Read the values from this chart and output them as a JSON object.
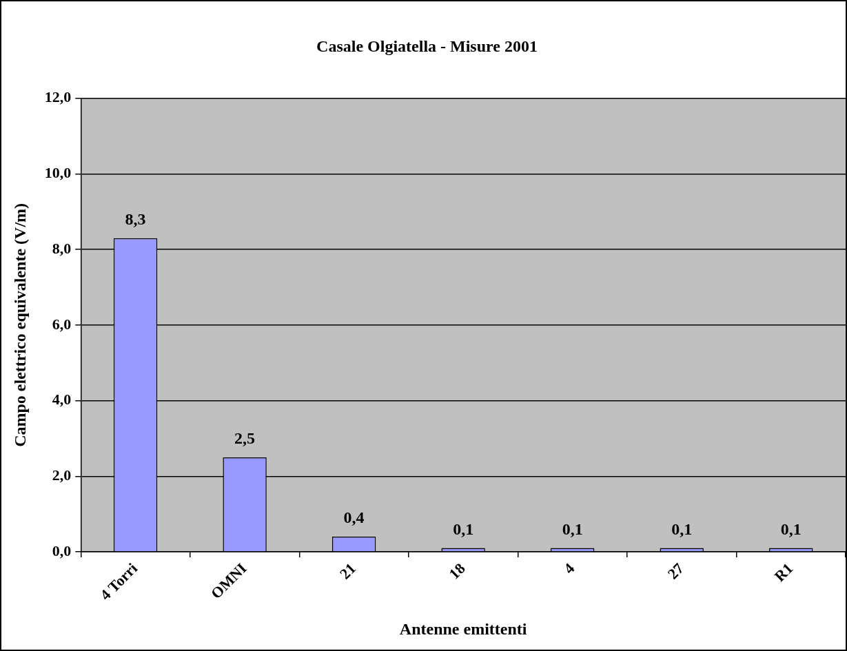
{
  "chart_data": {
    "type": "bar",
    "title": "Casale Olgiatella - Misure 2001",
    "xlabel": "Antenne emittenti",
    "ylabel": "Campo elettrico equivalente (V/m)",
    "categories": [
      "4 Torri",
      "OMNI",
      "21",
      "18",
      "4",
      "27",
      "R1"
    ],
    "values": [
      8.3,
      2.5,
      0.4,
      0.1,
      0.1,
      0.1,
      0.1
    ],
    "value_labels": [
      "8,3",
      "2,5",
      "0,4",
      "0,1",
      "0,1",
      "0,1",
      "0,1"
    ],
    "color": "#9999ff",
    "ylim": [
      0,
      12
    ],
    "yticks": [
      {
        "value": 0,
        "label": "0,0"
      },
      {
        "value": 2,
        "label": "2,0"
      },
      {
        "value": 4,
        "label": "4,0"
      },
      {
        "value": 6,
        "label": "6,0"
      },
      {
        "value": 8,
        "label": "8,0"
      },
      {
        "value": 10,
        "label": "10,0"
      },
      {
        "value": 12,
        "label": "12,0"
      }
    ],
    "grid": "y",
    "legend": false
  }
}
